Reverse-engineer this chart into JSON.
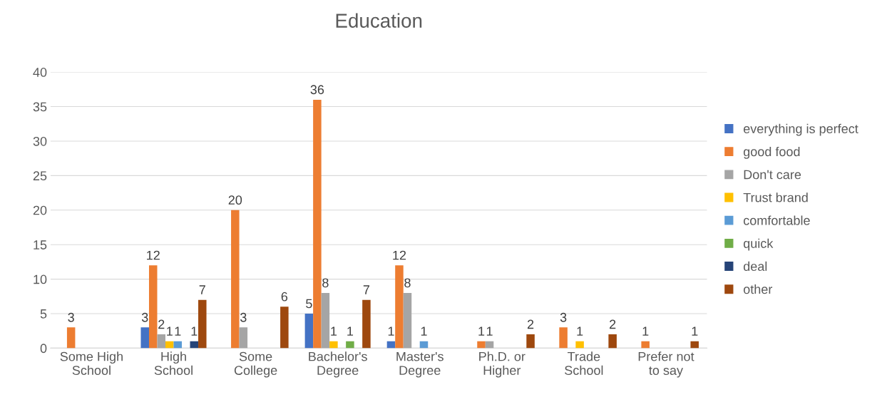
{
  "chart_data": {
    "type": "bar",
    "title": "Education",
    "categories": [
      "Some High\nSchool",
      "High\nSchool",
      "Some\nCollege",
      "Bachelor's\nDegree",
      "Master's\nDegree",
      "Ph.D. or\nHigher",
      "Trade\nSchool",
      "Prefer not\nto say"
    ],
    "series": [
      {
        "name": "everything is perfect",
        "color": "#4472c4",
        "values": [
          null,
          3,
          null,
          5,
          1,
          null,
          null,
          null
        ]
      },
      {
        "name": "good food",
        "color": "#ed7d31",
        "values": [
          3,
          12,
          20,
          36,
          12,
          1,
          3,
          1
        ]
      },
      {
        "name": "Don't care",
        "color": "#a5a5a5",
        "values": [
          null,
          2,
          3,
          8,
          8,
          1,
          null,
          null
        ]
      },
      {
        "name": "Trust brand",
        "color": "#ffc000",
        "values": [
          null,
          1,
          null,
          1,
          null,
          null,
          1,
          null
        ]
      },
      {
        "name": "comfortable",
        "color": "#5b9bd5",
        "values": [
          null,
          1,
          null,
          null,
          1,
          null,
          null,
          null
        ]
      },
      {
        "name": "quick",
        "color": "#70ad47",
        "values": [
          null,
          null,
          null,
          1,
          null,
          null,
          null,
          null
        ]
      },
      {
        "name": "deal",
        "color": "#264478",
        "values": [
          null,
          1,
          null,
          null,
          null,
          null,
          null,
          null
        ]
      },
      {
        "name": "other",
        "color": "#9e480e",
        "values": [
          null,
          7,
          6,
          7,
          null,
          2,
          2,
          1
        ]
      }
    ],
    "ylim": [
      0,
      40
    ],
    "yticks": [
      0,
      5,
      10,
      15,
      20,
      25,
      30,
      35,
      40
    ],
    "grid": "y",
    "legend": "right",
    "data_labels": true
  }
}
